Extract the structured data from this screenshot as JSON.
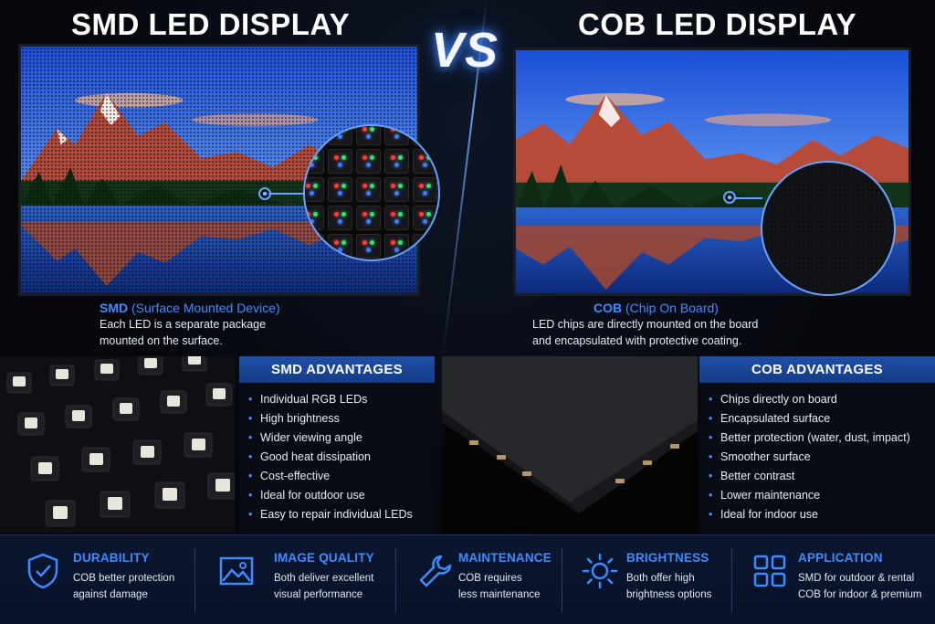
{
  "titles": {
    "left": "SMD LED DISPLAY",
    "vs": "VS",
    "right": "COB LED DISPLAY"
  },
  "smd": {
    "heading": "SMD",
    "heading_detail": "(Surface Mounted Device)",
    "description_line1": "Each LED is a separate package",
    "description_line2": "mounted on the surface.",
    "advantages_title": "SMD ADVANTAGES",
    "advantages": [
      "Individual RGB LEDs",
      "High brightness",
      "Wider viewing angle",
      "Good heat dissipation",
      "Cost-effective",
      "Ideal for outdoor use",
      "Easy to repair individual LEDs"
    ]
  },
  "cob": {
    "heading": "COB",
    "heading_detail": "(Chip On Board)",
    "description_line1": "LED chips are directly mounted on the board",
    "description_line2": "and encapsulated with protective coating.",
    "advantages_title": "COB ADVANTAGES",
    "advantages": [
      "Chips directly on board",
      "Encapsulated surface",
      "Better protection (water, dust, impact)",
      "Smoother surface",
      "Better contrast",
      "Lower maintenance",
      "Ideal for indoor use"
    ]
  },
  "footer": [
    {
      "icon": "shield-check-icon",
      "title": "DURABILITY",
      "line1": "COB better protection",
      "line2": "against damage"
    },
    {
      "icon": "image-icon",
      "title": "IMAGE QUALITY",
      "line1": "Both deliver excellent",
      "line2": "visual performance"
    },
    {
      "icon": "wrench-icon",
      "title": "MAINTENANCE",
      "line1": "COB requires",
      "line2": "less maintenance"
    },
    {
      "icon": "sun-icon",
      "title": "BRIGHTNESS",
      "line1": "Both offer high",
      "line2": "brightness options"
    },
    {
      "icon": "grid-apps-icon",
      "title": "APPLICATION",
      "line1": "SMD for outdoor & rental",
      "line2": "COB for indoor & premium"
    }
  ],
  "colors": {
    "accent": "#3f8cff",
    "header_bar": "#1f4fa8",
    "footer_bg": "#0a1630"
  }
}
